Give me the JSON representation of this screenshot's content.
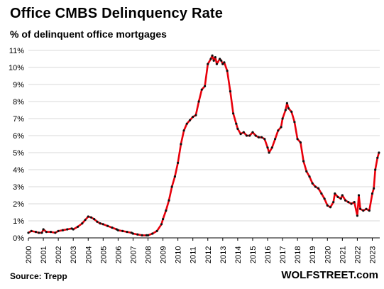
{
  "header": {
    "title": "Office CMBS Delinquency Rate",
    "subtitle": "% of delinquent office mortgages"
  },
  "footer": {
    "source": "Source: Trepp",
    "brand": "WOLFSTREET.com"
  },
  "colors": {
    "line": "#e8000b",
    "marker": "#111111",
    "grid": "#d9d9d9"
  },
  "chart_data": {
    "type": "line",
    "title": "Office CMBS Delinquency Rate",
    "subtitle": "% of delinquent office mortgages",
    "xlabel": "",
    "ylabel": "",
    "ylim": [
      0,
      11
    ],
    "xlim": [
      2000,
      2023.5
    ],
    "grid": "horizontal",
    "y_ticks": [
      "0%",
      "1%",
      "2%",
      "3%",
      "4%",
      "5%",
      "6%",
      "7%",
      "8%",
      "9%",
      "10%",
      "11%"
    ],
    "x_ticks": [
      "2000",
      "2001",
      "2002",
      "2003",
      "2004",
      "2005",
      "2006",
      "2007",
      "2008",
      "2009",
      "2010",
      "2011",
      "2012",
      "2013",
      "2014",
      "2015",
      "2016",
      "2017",
      "2018",
      "2019",
      "2020",
      "2021",
      "2022",
      "2023"
    ],
    "series": [
      {
        "points": [
          [
            2000.0,
            0.3
          ],
          [
            2000.2,
            0.4
          ],
          [
            2000.5,
            0.35
          ],
          [
            2000.7,
            0.3
          ],
          [
            2000.9,
            0.3
          ],
          [
            2001.0,
            0.5
          ],
          [
            2001.2,
            0.35
          ],
          [
            2001.5,
            0.35
          ],
          [
            2001.8,
            0.3
          ],
          [
            2002.0,
            0.4
          ],
          [
            2002.3,
            0.45
          ],
          [
            2002.6,
            0.5
          ],
          [
            2002.9,
            0.55
          ],
          [
            2003.0,
            0.5
          ],
          [
            2003.3,
            0.65
          ],
          [
            2003.6,
            0.85
          ],
          [
            2003.8,
            1.05
          ],
          [
            2004.0,
            1.25
          ],
          [
            2004.2,
            1.2
          ],
          [
            2004.4,
            1.1
          ],
          [
            2004.6,
            0.95
          ],
          [
            2004.8,
            0.85
          ],
          [
            2005.0,
            0.8
          ],
          [
            2005.3,
            0.7
          ],
          [
            2005.6,
            0.6
          ],
          [
            2005.9,
            0.5
          ],
          [
            2006.0,
            0.45
          ],
          [
            2006.3,
            0.4
          ],
          [
            2006.6,
            0.35
          ],
          [
            2006.9,
            0.3
          ],
          [
            2007.0,
            0.25
          ],
          [
            2007.3,
            0.2
          ],
          [
            2007.6,
            0.15
          ],
          [
            2007.9,
            0.15
          ],
          [
            2008.0,
            0.15
          ],
          [
            2008.3,
            0.25
          ],
          [
            2008.6,
            0.4
          ],
          [
            2008.9,
            0.8
          ],
          [
            2009.0,
            1.1
          ],
          [
            2009.2,
            1.6
          ],
          [
            2009.4,
            2.2
          ],
          [
            2009.6,
            3.0
          ],
          [
            2009.8,
            3.6
          ],
          [
            2010.0,
            4.4
          ],
          [
            2010.2,
            5.5
          ],
          [
            2010.4,
            6.3
          ],
          [
            2010.6,
            6.7
          ],
          [
            2010.8,
            6.9
          ],
          [
            2011.0,
            7.1
          ],
          [
            2011.2,
            7.2
          ],
          [
            2011.4,
            8.0
          ],
          [
            2011.6,
            8.7
          ],
          [
            2011.8,
            8.9
          ],
          [
            2012.0,
            10.2
          ],
          [
            2012.2,
            10.5
          ],
          [
            2012.3,
            10.7
          ],
          [
            2012.4,
            10.4
          ],
          [
            2012.5,
            10.6
          ],
          [
            2012.6,
            10.2
          ],
          [
            2012.8,
            10.5
          ],
          [
            2012.9,
            10.4
          ],
          [
            2013.0,
            10.2
          ],
          [
            2013.1,
            10.3
          ],
          [
            2013.3,
            9.8
          ],
          [
            2013.5,
            8.6
          ],
          [
            2013.7,
            7.3
          ],
          [
            2013.9,
            6.7
          ],
          [
            2014.0,
            6.4
          ],
          [
            2014.2,
            6.1
          ],
          [
            2014.4,
            6.2
          ],
          [
            2014.6,
            6.0
          ],
          [
            2014.8,
            6.0
          ],
          [
            2015.0,
            6.2
          ],
          [
            2015.2,
            6.0
          ],
          [
            2015.4,
            5.9
          ],
          [
            2015.6,
            5.9
          ],
          [
            2015.8,
            5.8
          ],
          [
            2016.0,
            5.3
          ],
          [
            2016.1,
            5.0
          ],
          [
            2016.3,
            5.3
          ],
          [
            2016.5,
            5.8
          ],
          [
            2016.7,
            6.3
          ],
          [
            2016.9,
            6.5
          ],
          [
            2017.0,
            7.0
          ],
          [
            2017.2,
            7.5
          ],
          [
            2017.3,
            7.9
          ],
          [
            2017.4,
            7.6
          ],
          [
            2017.6,
            7.4
          ],
          [
            2017.8,
            6.8
          ],
          [
            2018.0,
            5.8
          ],
          [
            2018.2,
            5.6
          ],
          [
            2018.4,
            4.5
          ],
          [
            2018.6,
            3.9
          ],
          [
            2018.8,
            3.6
          ],
          [
            2019.0,
            3.2
          ],
          [
            2019.2,
            3.0
          ],
          [
            2019.4,
            2.9
          ],
          [
            2019.6,
            2.6
          ],
          [
            2019.8,
            2.3
          ],
          [
            2020.0,
            1.9
          ],
          [
            2020.2,
            1.8
          ],
          [
            2020.4,
            2.1
          ],
          [
            2020.5,
            2.6
          ],
          [
            2020.7,
            2.4
          ],
          [
            2020.9,
            2.3
          ],
          [
            2021.0,
            2.5
          ],
          [
            2021.2,
            2.2
          ],
          [
            2021.4,
            2.1
          ],
          [
            2021.6,
            2.0
          ],
          [
            2021.8,
            2.1
          ],
          [
            2022.0,
            1.3
          ],
          [
            2022.1,
            2.5
          ],
          [
            2022.2,
            1.7
          ],
          [
            2022.4,
            1.6
          ],
          [
            2022.6,
            1.7
          ],
          [
            2022.8,
            1.6
          ],
          [
            2023.0,
            2.6
          ],
          [
            2023.1,
            2.9
          ],
          [
            2023.2,
            4.0
          ],
          [
            2023.35,
            4.7
          ],
          [
            2023.45,
            5.0
          ]
        ]
      }
    ]
  }
}
